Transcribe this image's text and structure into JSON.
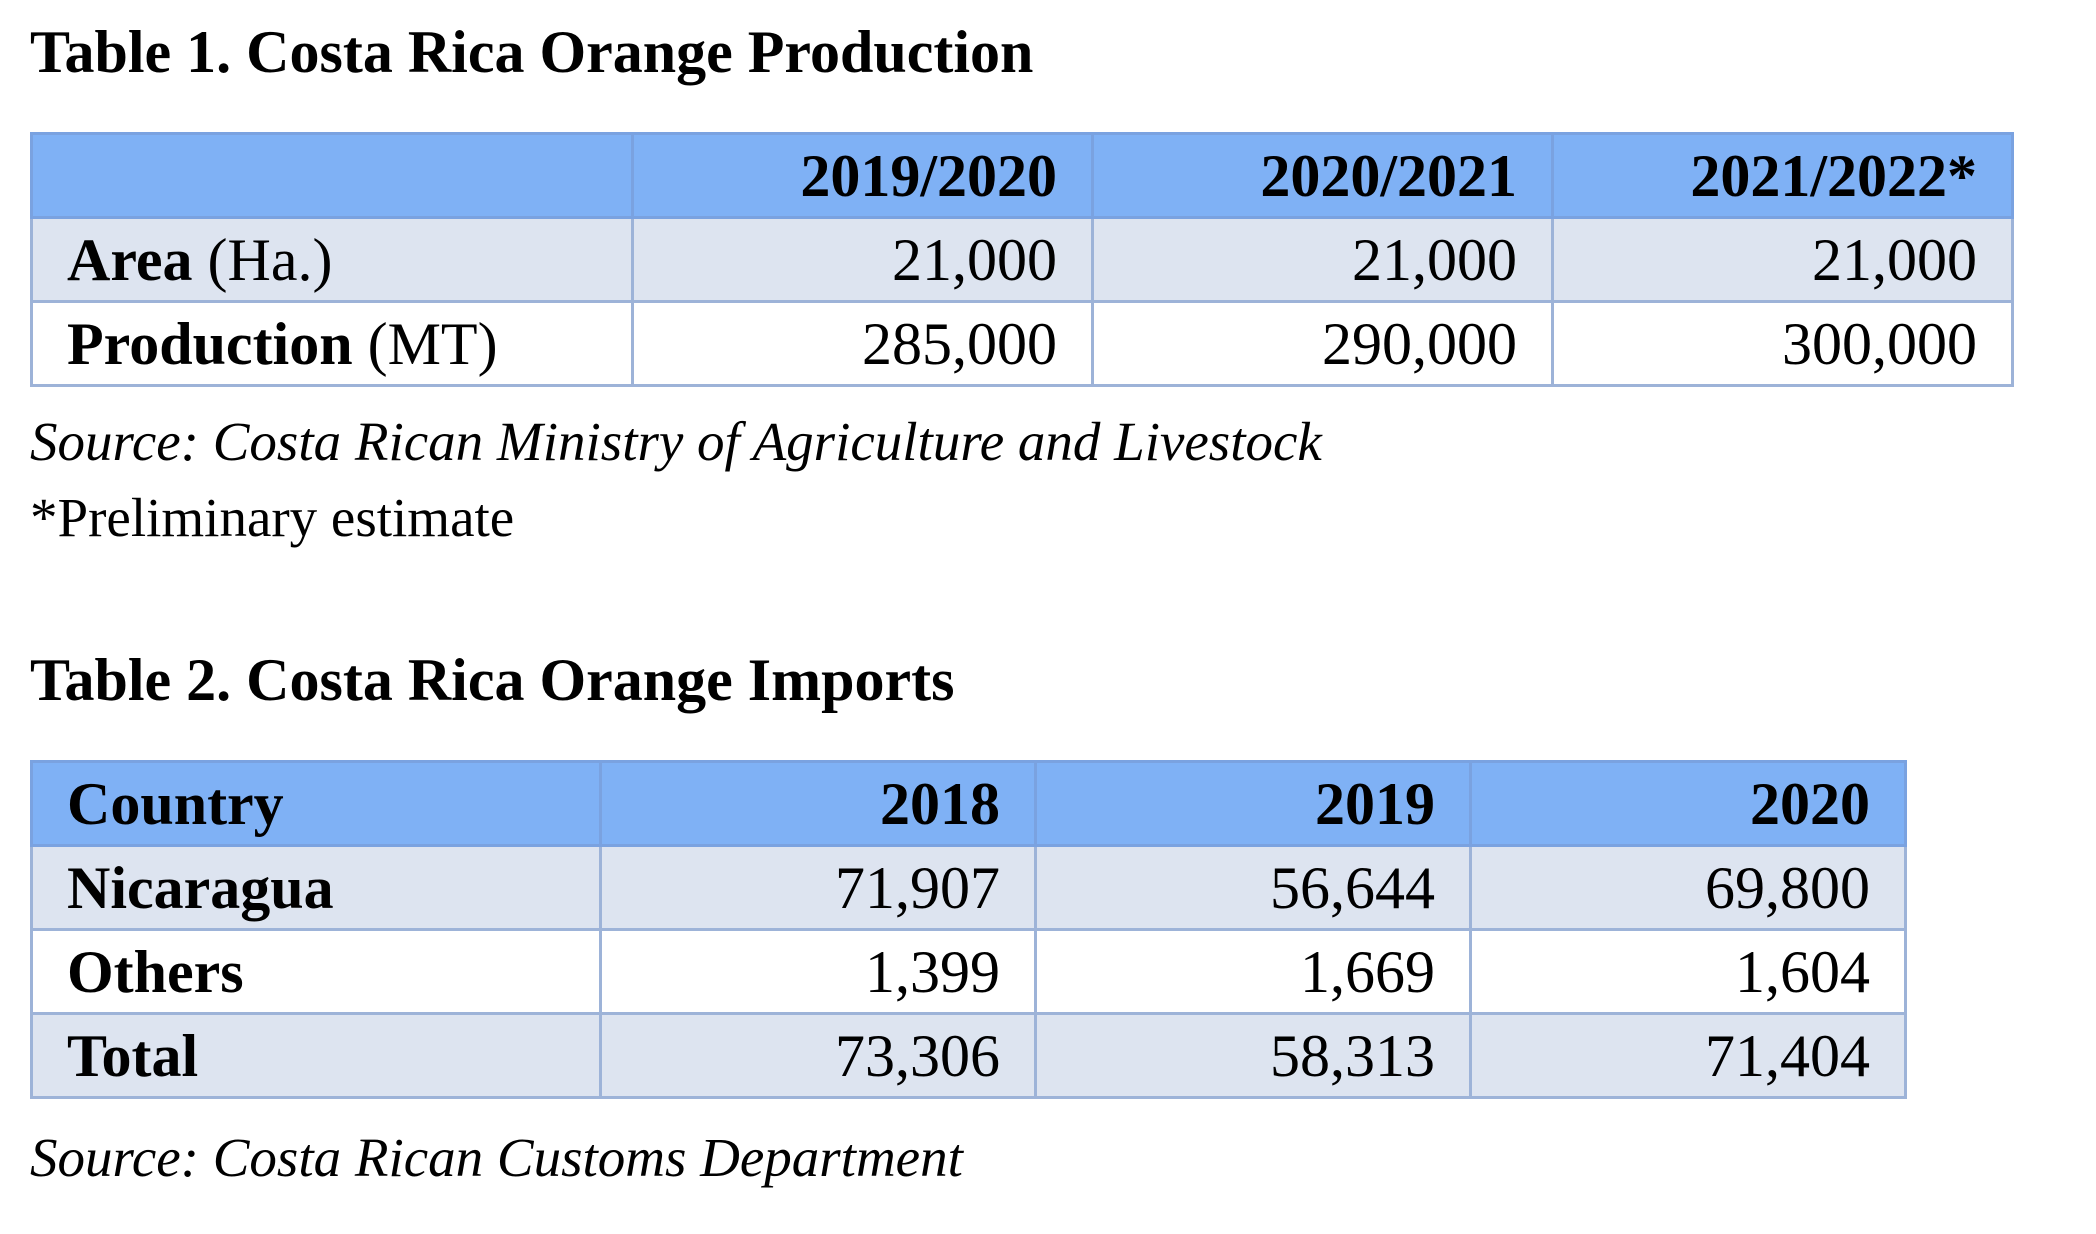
{
  "table1": {
    "title": "Table 1. Costa Rica Orange Production",
    "header": [
      "",
      "2019/2020",
      "2020/2021",
      "2021/2022*"
    ],
    "rows": [
      {
        "label_bold": "Area",
        "label_unit": " (Ha.)",
        "values": [
          "21,000",
          "21,000",
          "21,000"
        ]
      },
      {
        "label_bold": "Production",
        "label_unit": " (MT)",
        "values": [
          "285,000",
          "290,000",
          "300,000"
        ]
      }
    ],
    "source": "Source: Costa Rican Ministry of Agriculture and Livestock",
    "note": "*Preliminary estimate"
  },
  "table2": {
    "title": "Table 2. Costa Rica Orange Imports",
    "header": [
      "Country",
      "2018",
      "2019",
      "2020"
    ],
    "rows": [
      {
        "label": "Nicaragua",
        "values": [
          "71,907",
          "56,644",
          "69,800"
        ]
      },
      {
        "label": "Others",
        "values": [
          "1,399",
          "1,669",
          "1,604"
        ]
      },
      {
        "label": "Total",
        "values": [
          "73,306",
          "58,313",
          "71,404"
        ]
      }
    ],
    "source": "Source:  Costa Rican Customs Department"
  },
  "colors": {
    "header_fill": "#7fb1f5",
    "shaded_row_fill": "#dde4f0",
    "grid_line": "#9db3d8"
  }
}
